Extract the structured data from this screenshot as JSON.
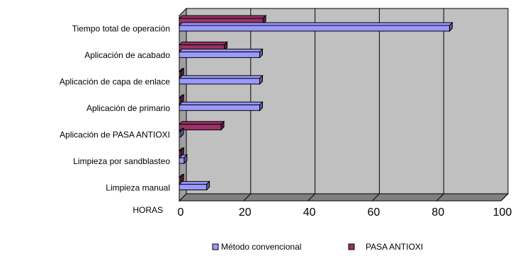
{
  "chart_data": {
    "type": "bar",
    "orientation": "horizontal",
    "three_d": true,
    "categories": [
      "Tiempo total de operación",
      "Aplicación de acabado",
      "Aplicación de capa de enlace",
      "Aplicación de primario",
      "Aplicación de PASA ANTIOXI",
      "Limpieza por sandblasteo",
      "Limpieza manual"
    ],
    "series": [
      {
        "name": "Método convencional",
        "color": "#9999ff",
        "values": [
          84,
          25,
          25,
          25,
          0,
          1.5,
          8.5
        ]
      },
      {
        "name": "PASA ANTIOXI",
        "color": "#993366",
        "values": [
          26,
          14,
          0.5,
          0.5,
          13,
          0.5,
          0.5
        ]
      }
    ],
    "xlabel": "HORAS",
    "xlim": [
      0,
      100
    ],
    "xticks": [
      "0",
      "20",
      "40",
      "60",
      "80",
      "100"
    ],
    "grid": true,
    "plot_background": "#c0c0c0",
    "legend_position": "bottom"
  }
}
